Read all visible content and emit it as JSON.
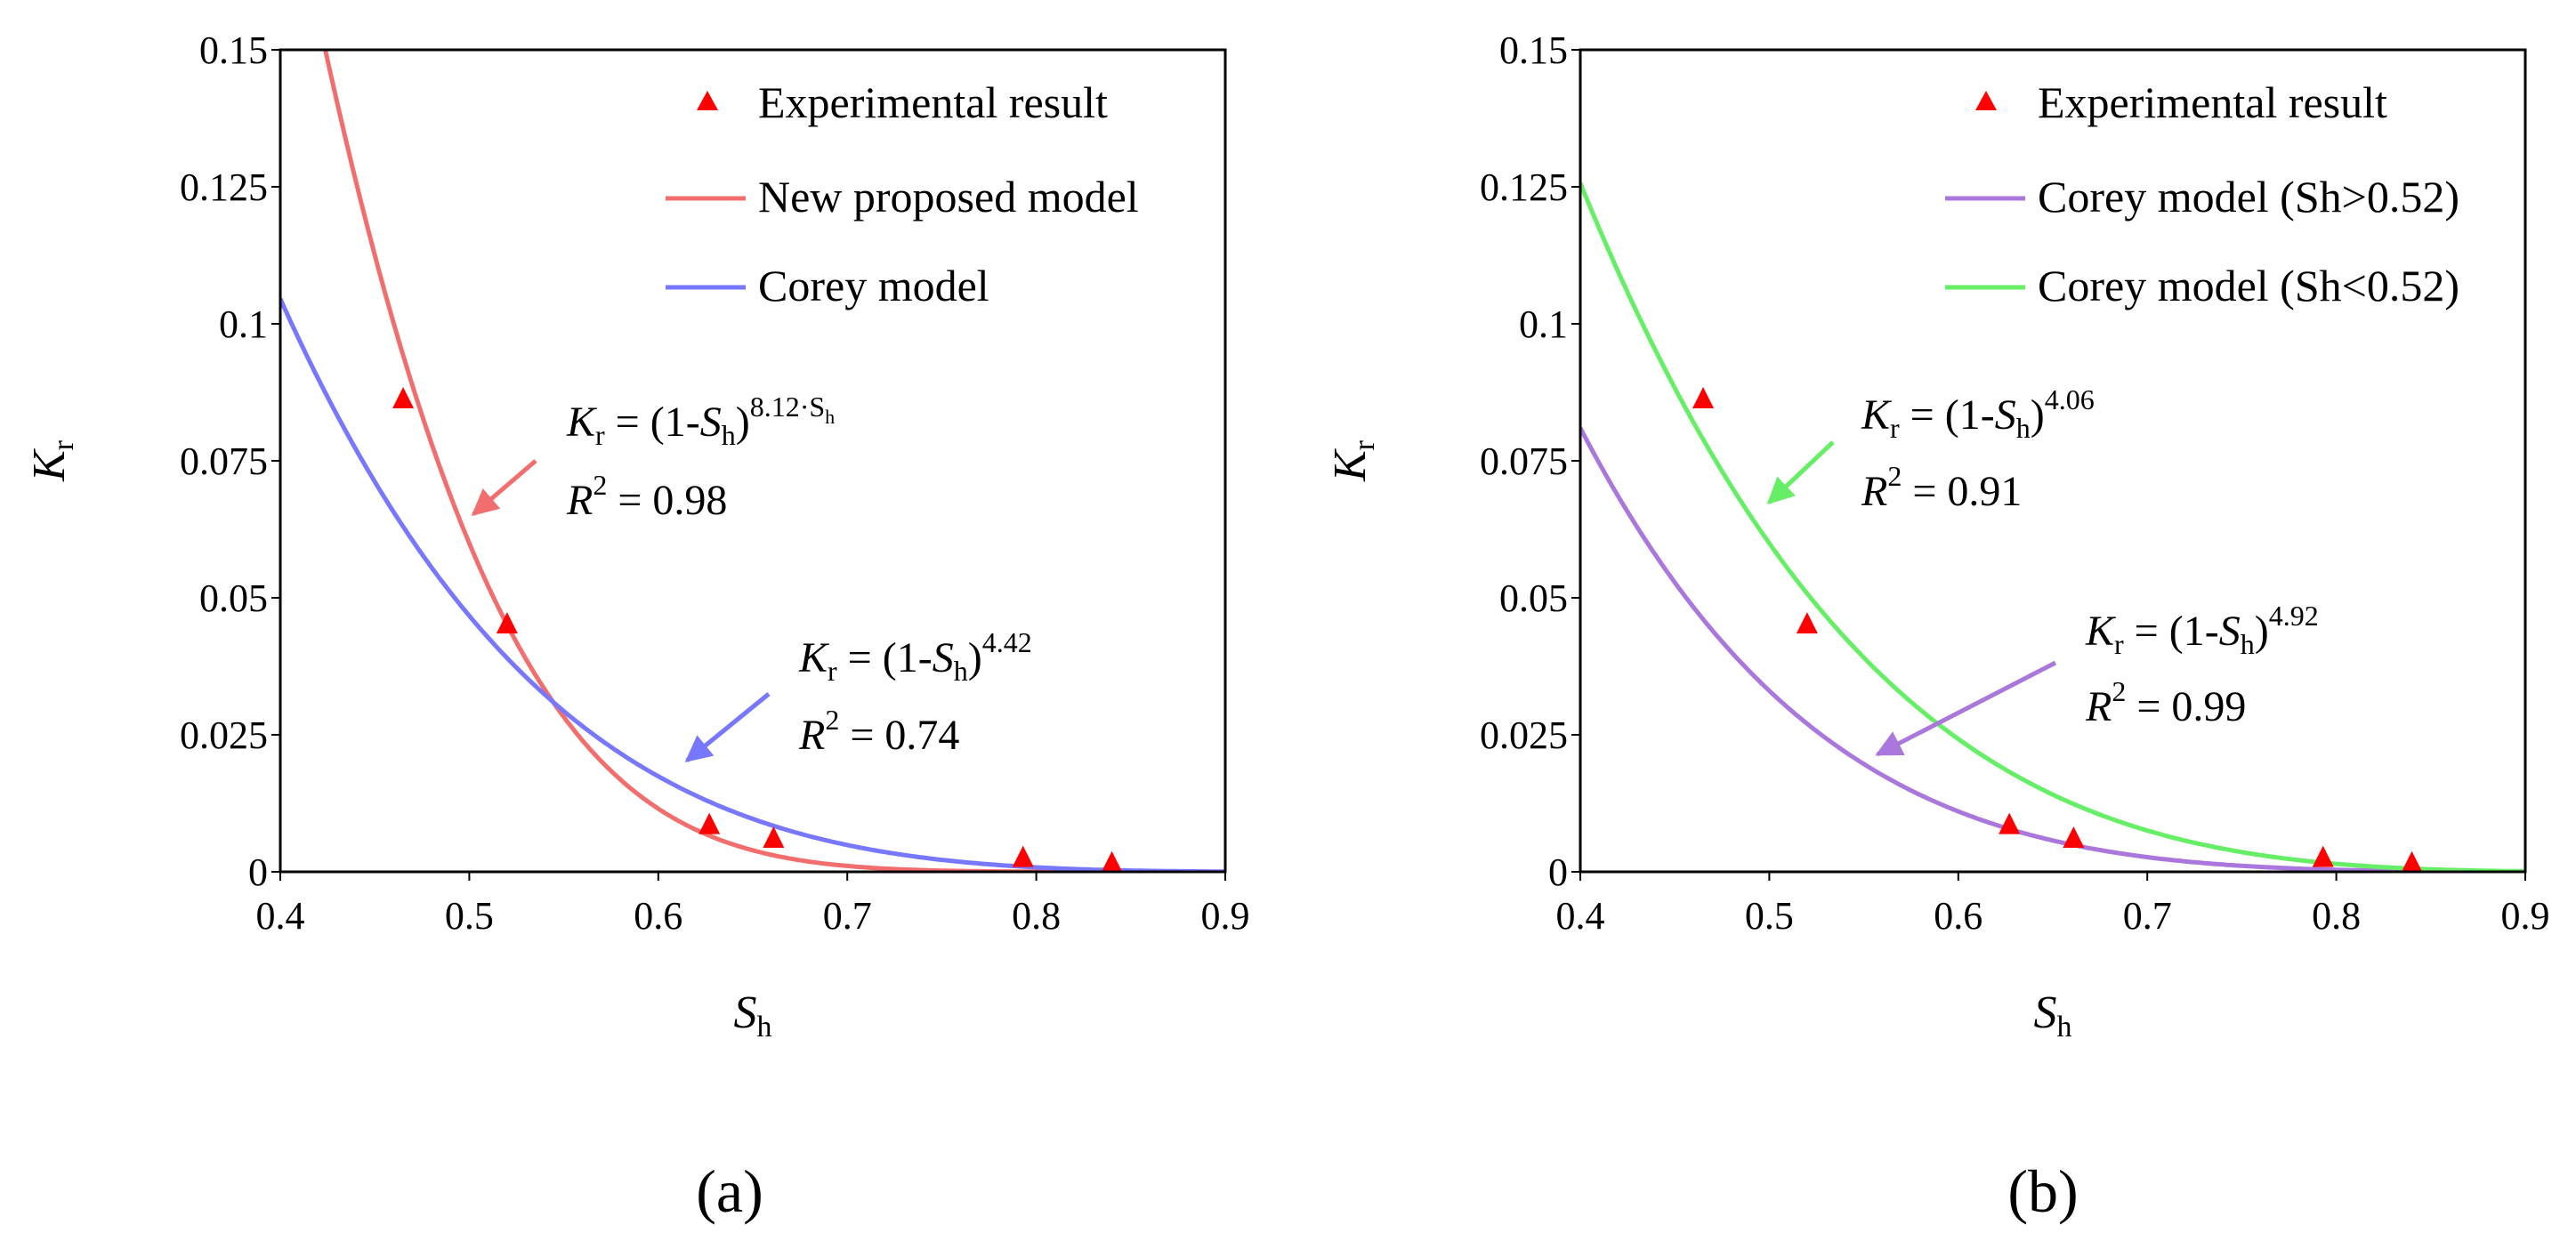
{
  "figure": {
    "panel_labels": [
      "(a)",
      "(b)"
    ]
  },
  "chart_data": [
    {
      "type": "line",
      "panel": "(a)",
      "title": "",
      "xlabel": {
        "main": "S",
        "sub": "h"
      },
      "ylabel": {
        "main": "K",
        "sub": "r"
      },
      "xlim": [
        0.4,
        0.9
      ],
      "ylim": [
        0,
        0.15
      ],
      "xticks": [
        "0.4",
        "0.5",
        "0.6",
        "0.7",
        "0.8",
        "0.9"
      ],
      "yticks": [
        "0",
        "0.025",
        "0.05",
        "0.075",
        "0.1",
        "0.125",
        "0.15"
      ],
      "grid": false,
      "legend_position": "top-right",
      "series": [
        {
          "name": "Experimental result",
          "kind": "scatter",
          "marker": "triangle",
          "color": "#ff0000",
          "x": [
            0.465,
            0.52,
            0.627,
            0.661,
            0.793,
            0.84
          ],
          "y": [
            0.0862,
            0.0451,
            0.0085,
            0.006,
            0.0025,
            0.0015
          ]
        },
        {
          "name": "New proposed model",
          "kind": "line",
          "color": "#f26d6d",
          "formula": "new",
          "exponent_factor": 8.12
        },
        {
          "name": "Corey model",
          "kind": "line",
          "color": "#7777ff",
          "formula": "corey",
          "exponent": 4.42
        }
      ],
      "annotations": [
        {
          "k": "K",
          "k_sub": "r",
          "eq_open": " = (1-",
          "s": "S",
          "s_sub": "h",
          "close": ")",
          "exp": "8.12·S",
          "exp_sub": "h",
          "r": "R",
          "r_sup": "2",
          "r_val": " = 0.98",
          "arrow_color": "#f26d6d"
        },
        {
          "k": "K",
          "k_sub": "r",
          "eq_open": " = (1-",
          "s": "S",
          "s_sub": "h",
          "close": ")",
          "exp": "4.42",
          "exp_sub": "",
          "r": "R",
          "r_sup": "2",
          "r_val": " = 0.74",
          "arrow_color": "#7777ff"
        }
      ]
    },
    {
      "type": "line",
      "panel": "(b)",
      "title": "",
      "xlabel": {
        "main": "S",
        "sub": "h"
      },
      "ylabel": {
        "main": "K",
        "sub": "r"
      },
      "xlim": [
        0.4,
        0.9
      ],
      "ylim": [
        0,
        0.15
      ],
      "xticks": [
        "0.4",
        "0.5",
        "0.6",
        "0.7",
        "0.8",
        "0.9"
      ],
      "yticks": [
        "0",
        "0.025",
        "0.05",
        "0.075",
        "0.1",
        "0.125",
        "0.15"
      ],
      "grid": false,
      "legend_position": "top-right",
      "series": [
        {
          "name": "Experimental result",
          "kind": "scatter",
          "marker": "triangle",
          "color": "#ff0000",
          "x": [
            0.465,
            0.52,
            0.627,
            0.661,
            0.793,
            0.84
          ],
          "y": [
            0.0862,
            0.0451,
            0.0085,
            0.006,
            0.0025,
            0.0015
          ]
        },
        {
          "name": "Corey model (Sh>0.52)",
          "kind": "line",
          "color": "#aa77dd",
          "formula": "corey",
          "exponent": 4.92
        },
        {
          "name": "Corey model (Sh<0.52)",
          "kind": "line",
          "color": "#66ee66",
          "formula": "corey",
          "exponent": 4.06
        }
      ],
      "annotations": [
        {
          "k": "K",
          "k_sub": "r",
          "eq_open": " = (1-",
          "s": "S",
          "s_sub": "h",
          "close": ")",
          "exp": "4.06",
          "exp_sub": "",
          "r": "R",
          "r_sup": "2",
          "r_val": " = 0.91",
          "arrow_color": "#66ee66"
        },
        {
          "k": "K",
          "k_sub": "r",
          "eq_open": " = (1-",
          "s": "S",
          "s_sub": "h",
          "close": ")",
          "exp": "4.92",
          "exp_sub": "",
          "r": "R",
          "r_sup": "2",
          "r_val": " = 0.99",
          "arrow_color": "#aa77dd"
        }
      ]
    }
  ]
}
